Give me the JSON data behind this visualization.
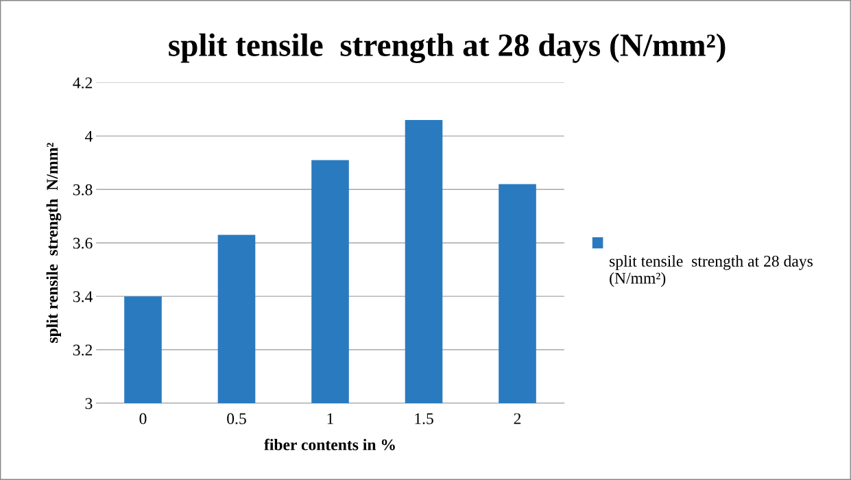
{
  "chart_data": {
    "type": "bar",
    "title": "split tensile  strength at 28 days (N/mm²)",
    "xlabel": "fiber contents in %",
    "ylabel": "split rensile  strength  N/mm²",
    "categories": [
      "0",
      "0.5",
      "1",
      "1.5",
      "2"
    ],
    "series": [
      {
        "name": "split tensile  strength at 28 days (N/mm²)",
        "color": "#2a7abf",
        "values": [
          3.4,
          3.63,
          3.91,
          4.06,
          3.82
        ]
      }
    ],
    "ylim": [
      3,
      4.2
    ],
    "yticks": [
      3,
      3.2,
      3.4,
      3.6,
      3.8,
      4,
      4.2
    ],
    "grid": "y",
    "legend": "right"
  }
}
